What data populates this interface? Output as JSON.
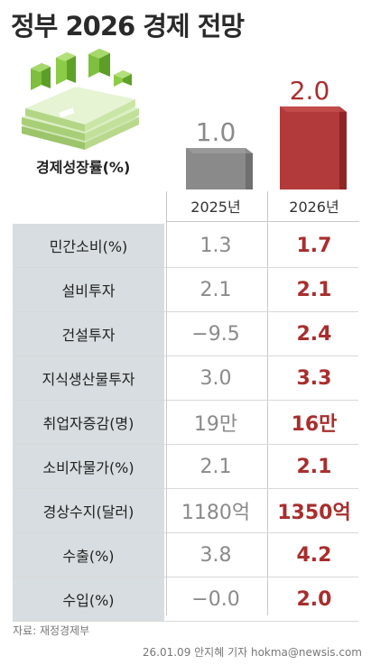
{
  "title": "정부 2026 경제 전망",
  "growth_label": "경제성장률(%)",
  "chart_data": {
    "type": "bar",
    "categories": [
      "2025년",
      "2026년"
    ],
    "values": [
      1.0,
      2.0
    ],
    "value_labels": [
      "1.0",
      "2.0"
    ],
    "ylabel": "경제성장률(%)",
    "colors": [
      "#8a8a8a",
      "#b23a3a"
    ]
  },
  "table": {
    "headers": [
      "2025년",
      "2026년"
    ],
    "rows": [
      {
        "label": "민간소비(%)",
        "v2025": "1.3",
        "v2026": "1.7"
      },
      {
        "label": "설비투자",
        "v2025": "2.1",
        "v2026": "2.1"
      },
      {
        "label": "건설투자",
        "v2025": "−9.5",
        "v2026": "2.4"
      },
      {
        "label": "지식생산물투자",
        "v2025": "3.0",
        "v2026": "3.3"
      },
      {
        "label": "취업자증감(명)",
        "v2025": "19만",
        "v2026": "16만"
      },
      {
        "label": "소비자물가(%)",
        "v2025": "2.1",
        "v2026": "2.1"
      },
      {
        "label": "경상수지(달러)",
        "v2025": "1180억",
        "v2026": "1350억"
      },
      {
        "label": "수출(%)",
        "v2025": "3.8",
        "v2026": "4.2"
      },
      {
        "label": "수입(%)",
        "v2025": "−0.0",
        "v2026": "2.0"
      }
    ]
  },
  "source": "자료: 재정경제부",
  "credit": "26.01.09 안지혜 기자 hokma@newsis.com"
}
